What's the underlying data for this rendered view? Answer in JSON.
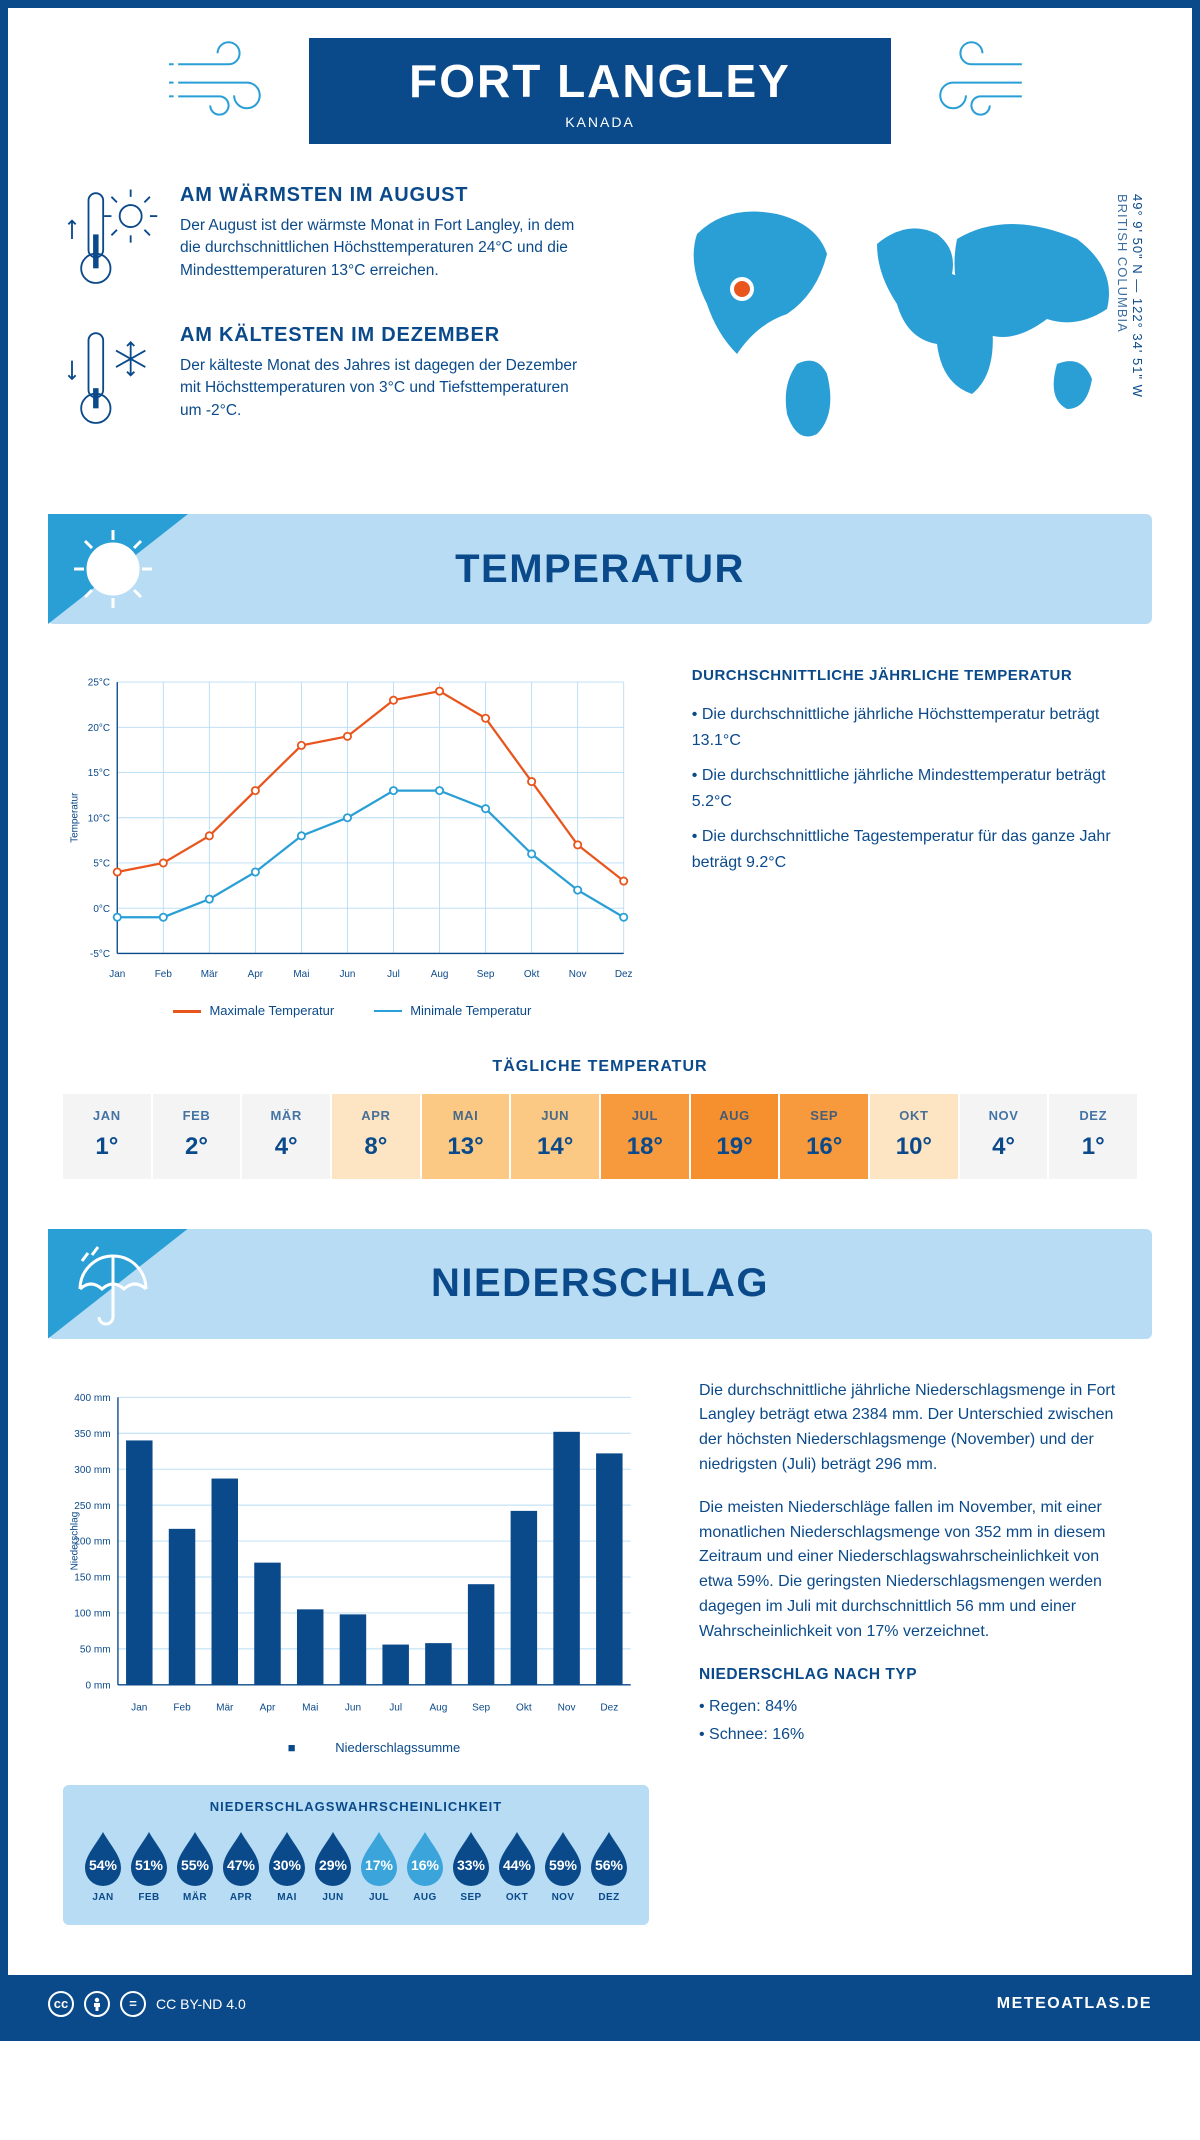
{
  "header": {
    "title": "FORT LANGLEY",
    "country": "KANADA"
  },
  "coords": {
    "lat": "49° 9' 50\" N",
    "lon": "122° 34' 51\" W",
    "sep": " — ",
    "region": "BRITISH COLUMBIA"
  },
  "facts": {
    "warm": {
      "title": "AM WÄRMSTEN IM AUGUST",
      "body": "Der August ist der wärmste Monat in Fort Langley, in dem die durchschnittlichen Höchsttemperaturen 24°C und die Mindesttemperaturen 13°C erreichen."
    },
    "cold": {
      "title": "AM KÄLTESTEN IM DEZEMBER",
      "body": "Der kälteste Monat des Jahres ist dagegen der Dezember mit Höchsttemperaturen von 3°C und Tiefsttemperaturen um -2°C."
    }
  },
  "sections": {
    "temperature": "TEMPERATUR",
    "precipitation": "NIEDERSCHLAG"
  },
  "temp_chart": {
    "type": "line",
    "months": [
      "Jan",
      "Feb",
      "Mär",
      "Apr",
      "Mai",
      "Jun",
      "Jul",
      "Aug",
      "Sep",
      "Okt",
      "Nov",
      "Dez"
    ],
    "max_values": [
      4,
      5,
      8,
      13,
      18,
      19,
      23,
      24,
      21,
      14,
      7,
      3
    ],
    "min_values": [
      -1,
      -1,
      1,
      4,
      8,
      10,
      13,
      13,
      11,
      6,
      2,
      -1
    ],
    "max_color": "#e8551d",
    "min_color": "#2a9fd6",
    "ylim": [
      -5,
      25
    ],
    "ytick_step": 5,
    "ylabel": "Temperatur",
    "grid_color": "#b7dcf4",
    "axis_color": "#0b4a8a",
    "legend_max": "Maximale Temperatur",
    "legend_min": "Minimale Temperatur",
    "label_fontsize": 11
  },
  "temp_side": {
    "heading": "DURCHSCHNITTLICHE JÄHRLICHE TEMPERATUR",
    "b1": "• Die durchschnittliche jährliche Höchsttemperatur beträgt 13.1°C",
    "b2": "• Die durchschnittliche jährliche Mindesttemperatur beträgt 5.2°C",
    "b3": "• Die durchschnittliche Tagestemperatur für das ganze Jahr beträgt 9.2°C"
  },
  "daily": {
    "title": "TÄGLICHE TEMPERATUR",
    "months": [
      "JAN",
      "FEB",
      "MÄR",
      "APR",
      "MAI",
      "JUN",
      "JUL",
      "AUG",
      "SEP",
      "OKT",
      "NOV",
      "DEZ"
    ],
    "values": [
      "1°",
      "2°",
      "4°",
      "8°",
      "13°",
      "14°",
      "18°",
      "19°",
      "16°",
      "10°",
      "4°",
      "1°"
    ],
    "colors": [
      "#f4f4f4",
      "#f4f4f4",
      "#f4f4f4",
      "#fde4c3",
      "#fcc984",
      "#fcc984",
      "#f79a3e",
      "#f6902f",
      "#f79a3e",
      "#fde4c3",
      "#f4f4f4",
      "#f4f4f4"
    ]
  },
  "precip_chart": {
    "type": "bar",
    "months": [
      "Jan",
      "Feb",
      "Mär",
      "Apr",
      "Mai",
      "Jun",
      "Jul",
      "Aug",
      "Sep",
      "Okt",
      "Nov",
      "Dez"
    ],
    "values": [
      340,
      217,
      287,
      170,
      105,
      98,
      56,
      58,
      140,
      242,
      352,
      322
    ],
    "ylim": [
      0,
      400
    ],
    "ytick_step": 50,
    "ylabel": "Niederschlag",
    "bar_color": "#0b4a8a",
    "grid_color": "#b7dcf4",
    "axis_color": "#0b4a8a",
    "legend": "Niederschlagssumme",
    "label_fontsize": 11
  },
  "precip_text": {
    "p1": "Die durchschnittliche jährliche Niederschlagsmenge in Fort Langley beträgt etwa 2384 mm. Der Unterschied zwischen der höchsten Niederschlagsmenge (November) und der niedrigsten (Juli) beträgt 296 mm.",
    "p2": "Die meisten Niederschläge fallen im November, mit einer monatlichen Niederschlagsmenge von 352 mm in diesem Zeitraum und einer Niederschlagswahrscheinlichkeit von etwa 59%. Die geringsten Niederschlagsmengen werden dagegen im Juli mit durchschnittlich 56 mm und einer Wahrscheinlichkeit von 17% verzeichnet.",
    "type_heading": "NIEDERSCHLAG NACH TYP",
    "type1": "• Regen: 84%",
    "type2": "• Schnee: 16%"
  },
  "precip_prob": {
    "title": "NIEDERSCHLAGSWAHRSCHEINLICHKEIT",
    "months": [
      "JAN",
      "FEB",
      "MÄR",
      "APR",
      "MAI",
      "JUN",
      "JUL",
      "AUG",
      "SEP",
      "OKT",
      "NOV",
      "DEZ"
    ],
    "values": [
      "54%",
      "51%",
      "55%",
      "47%",
      "30%",
      "29%",
      "17%",
      "16%",
      "33%",
      "44%",
      "59%",
      "56%"
    ],
    "colors": [
      "#0b4a8a",
      "#0b4a8a",
      "#0b4a8a",
      "#0b4a8a",
      "#0b4a8a",
      "#0b4a8a",
      "#3ba5db",
      "#3ba5db",
      "#0b4a8a",
      "#0b4a8a",
      "#0b4a8a",
      "#0b4a8a"
    ]
  },
  "footer": {
    "license": "CC BY-ND 4.0",
    "site": "METEOATLAS.DE"
  },
  "map": {
    "land_color": "#2a9fd6",
    "marker_color": "#e8551d",
    "marker_ring": "#ffffff"
  }
}
